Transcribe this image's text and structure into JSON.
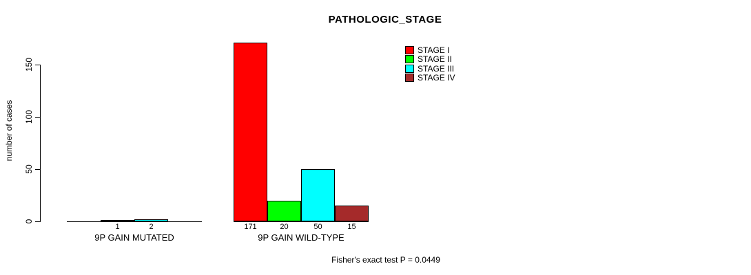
{
  "footnote": "Fisher's exact test P = 0.0449",
  "chart_data": {
    "type": "bar",
    "title": "PATHOLOGIC_STAGE",
    "ylabel": "number of cases",
    "yticks": [
      0,
      50,
      100,
      150
    ],
    "ylim": [
      0,
      171
    ],
    "grid": false,
    "legend_position": "top-right",
    "bar_border_color": "#000000",
    "legend": [
      {
        "label": "STAGE I",
        "color": "#FF0000"
      },
      {
        "label": "STAGE II",
        "color": "#00FF00"
      },
      {
        "label": "STAGE III",
        "color": "#00FFFF"
      },
      {
        "label": "STAGE IV",
        "color": "#A52A2A"
      }
    ],
    "groups": [
      {
        "label": "9P GAIN MUTATED",
        "slots": 4,
        "slot_offset": 1,
        "bars": [
          {
            "stage": "STAGE I",
            "value": 1,
            "color": "#FF0000"
          },
          {
            "stage": "STAGE III",
            "value": 2,
            "color": "#00FFFF"
          }
        ]
      },
      {
        "label": "9P GAIN WILD-TYPE",
        "slots": 4,
        "slot_offset": 0,
        "bars": [
          {
            "stage": "STAGE I",
            "value": 171,
            "color": "#FF0000"
          },
          {
            "stage": "STAGE II",
            "value": 20,
            "color": "#00FF00"
          },
          {
            "stage": "STAGE III",
            "value": 50,
            "color": "#00FFFF"
          },
          {
            "stage": "STAGE IV",
            "value": 15,
            "color": "#A52A2A"
          }
        ]
      }
    ]
  }
}
